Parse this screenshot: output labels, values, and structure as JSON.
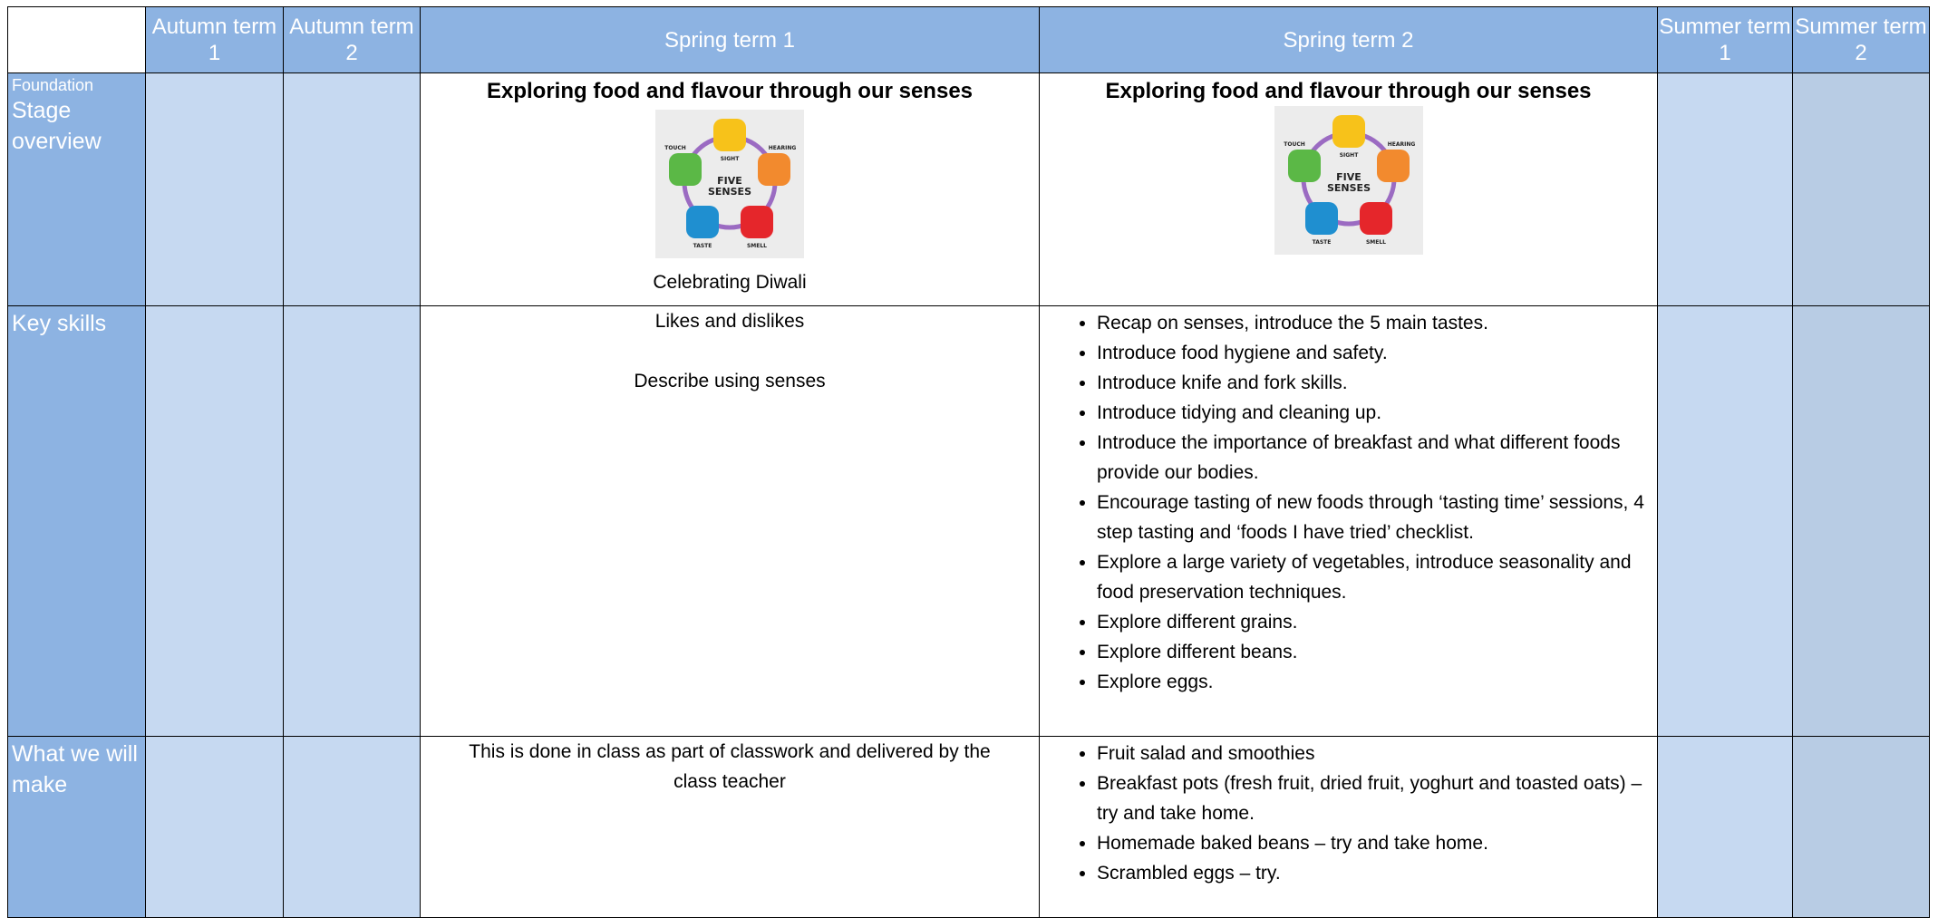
{
  "table": {
    "columns": [
      "Autumn term 1",
      "Autumn term 2",
      "Spring term 1",
      "Spring term 2",
      "Summer term 1",
      "Summer term 2"
    ],
    "rows": [
      {
        "label_small": "Foundation",
        "label": "Stage overview",
        "spring1": {
          "heading": "Exploring food and flavour through our senses",
          "caption": "Celebrating Diwali"
        },
        "spring2": {
          "heading": "Exploring food and flavour through our senses"
        }
      },
      {
        "label": "Key skills",
        "spring1": [
          "Likes and dislikes",
          "Describe using senses"
        ],
        "spring2": [
          "Recap on senses, introduce the 5 main tastes.",
          "Introduce food hygiene and safety.",
          "Introduce knife and fork skills.",
          "Introduce tidying and cleaning up.",
          "Introduce the importance of breakfast and what different foods provide our bodies.",
          "Encourage tasting of new foods through ‘tasting time’ sessions, 4 step tasting and ‘foods I have tried’ checklist.",
          "Explore a large variety of vegetables, introduce seasonality and food preservation techniques.",
          "Explore different grains.",
          "Explore different beans.",
          "Explore eggs."
        ]
      },
      {
        "label": "What we will make",
        "spring1": [
          "This is done in class as part of classwork and delivered by the class teacher"
        ],
        "spring2": [
          "Fruit salad and smoothies",
          "Breakfast pots (fresh fruit, dried fruit, yoghurt and toasted oats) – try and take home.",
          "Homemade baked beans – try and take home.",
          "Scrambled eggs – try."
        ]
      }
    ]
  },
  "senses_graphic": {
    "title": [
      "FIVE",
      "SENSES"
    ],
    "labels": [
      "SIGHT",
      "HEARING",
      "SMELL",
      "TASTE",
      "TOUCH"
    ]
  }
}
